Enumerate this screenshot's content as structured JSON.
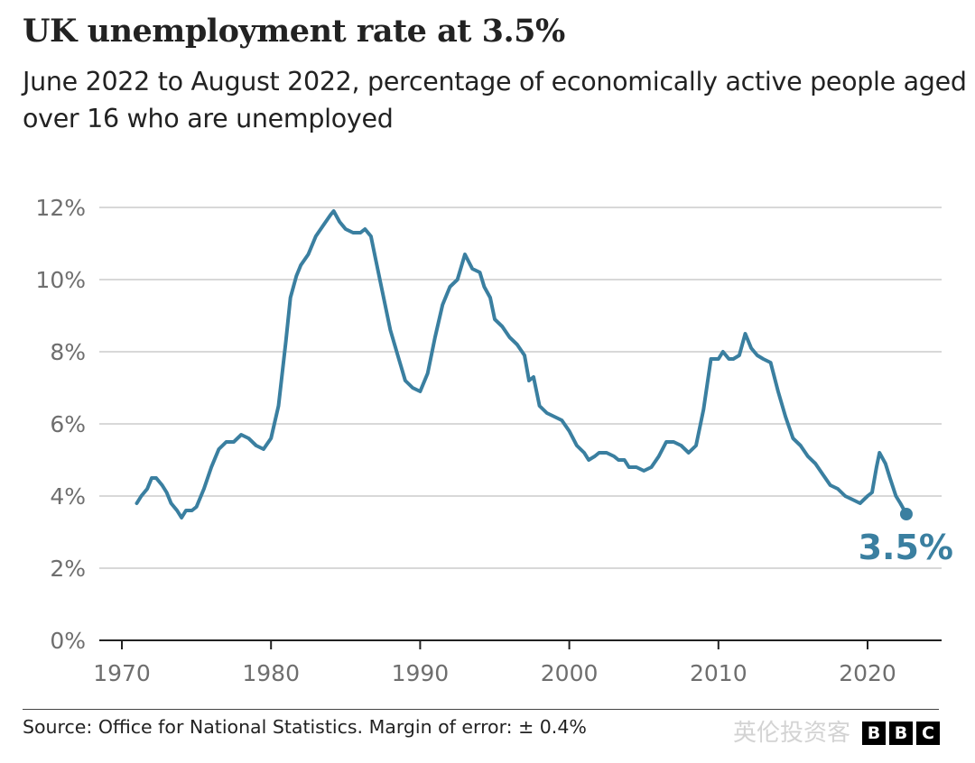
{
  "title": "UK unemployment rate at 3.5%",
  "subtitle": "June 2022 to August 2022, percentage of economically active people aged over 16 who are unemployed",
  "source": "Source: Office for National Statistics. Margin of error: ± 0.4%",
  "logo": [
    "B",
    "B",
    "C"
  ],
  "watermark": "英伦投资客",
  "colors": {
    "line": "#3a7fa0",
    "grid": "#cccccc",
    "axis": "#222222"
  },
  "chart_data": {
    "type": "line",
    "title": "UK unemployment rate at 3.5%",
    "xlabel": "",
    "ylabel": "",
    "ylim": [
      0,
      12
    ],
    "xlim": [
      1968,
      2025
    ],
    "yticks": [
      0,
      2,
      4,
      6,
      8,
      10,
      12
    ],
    "ytick_labels": [
      "0%",
      "2%",
      "4%",
      "6%",
      "8%",
      "10%",
      "12%"
    ],
    "xticks": [
      1970,
      1980,
      1990,
      2000,
      2010,
      2020
    ],
    "xtick_labels": [
      "1970",
      "1980",
      "1990",
      "2000",
      "2010",
      "2020"
    ],
    "grid": true,
    "annotation": {
      "label": "3.5%",
      "x": 2022.6,
      "y": 3.5
    },
    "series": [
      {
        "name": "Unemployment rate",
        "points": [
          [
            1971.0,
            3.8
          ],
          [
            1971.3,
            4.0
          ],
          [
            1971.7,
            4.2
          ],
          [
            1972.0,
            4.5
          ],
          [
            1972.3,
            4.5
          ],
          [
            1972.7,
            4.3
          ],
          [
            1973.0,
            4.1
          ],
          [
            1973.3,
            3.8
          ],
          [
            1973.7,
            3.6
          ],
          [
            1974.0,
            3.4
          ],
          [
            1974.3,
            3.6
          ],
          [
            1974.7,
            3.6
          ],
          [
            1975.0,
            3.7
          ],
          [
            1975.5,
            4.2
          ],
          [
            1976.0,
            4.8
          ],
          [
            1976.5,
            5.3
          ],
          [
            1977.0,
            5.5
          ],
          [
            1977.5,
            5.5
          ],
          [
            1978.0,
            5.7
          ],
          [
            1978.5,
            5.6
          ],
          [
            1979.0,
            5.4
          ],
          [
            1979.5,
            5.3
          ],
          [
            1980.0,
            5.6
          ],
          [
            1980.5,
            6.5
          ],
          [
            1981.0,
            8.3
          ],
          [
            1981.3,
            9.5
          ],
          [
            1981.7,
            10.1
          ],
          [
            1982.0,
            10.4
          ],
          [
            1982.5,
            10.7
          ],
          [
            1983.0,
            11.2
          ],
          [
            1983.5,
            11.5
          ],
          [
            1984.0,
            11.8
          ],
          [
            1984.2,
            11.9
          ],
          [
            1984.6,
            11.6
          ],
          [
            1985.0,
            11.4
          ],
          [
            1985.5,
            11.3
          ],
          [
            1986.0,
            11.3
          ],
          [
            1986.3,
            11.4
          ],
          [
            1986.7,
            11.2
          ],
          [
            1987.0,
            10.6
          ],
          [
            1987.5,
            9.6
          ],
          [
            1988.0,
            8.6
          ],
          [
            1988.5,
            7.9
          ],
          [
            1989.0,
            7.2
          ],
          [
            1989.5,
            7.0
          ],
          [
            1990.0,
            6.9
          ],
          [
            1990.5,
            7.4
          ],
          [
            1991.0,
            8.4
          ],
          [
            1991.5,
            9.3
          ],
          [
            1992.0,
            9.8
          ],
          [
            1992.5,
            10.0
          ],
          [
            1993.0,
            10.7
          ],
          [
            1993.5,
            10.3
          ],
          [
            1994.0,
            10.2
          ],
          [
            1994.3,
            9.8
          ],
          [
            1994.7,
            9.5
          ],
          [
            1995.0,
            8.9
          ],
          [
            1995.5,
            8.7
          ],
          [
            1996.0,
            8.4
          ],
          [
            1996.5,
            8.2
          ],
          [
            1997.0,
            7.9
          ],
          [
            1997.3,
            7.2
          ],
          [
            1997.6,
            7.3
          ],
          [
            1998.0,
            6.5
          ],
          [
            1998.5,
            6.3
          ],
          [
            1999.0,
            6.2
          ],
          [
            1999.5,
            6.1
          ],
          [
            2000.0,
            5.8
          ],
          [
            2000.5,
            5.4
          ],
          [
            2001.0,
            5.2
          ],
          [
            2001.3,
            5.0
          ],
          [
            2001.7,
            5.1
          ],
          [
            2002.0,
            5.2
          ],
          [
            2002.5,
            5.2
          ],
          [
            2003.0,
            5.1
          ],
          [
            2003.3,
            5.0
          ],
          [
            2003.7,
            5.0
          ],
          [
            2004.0,
            4.8
          ],
          [
            2004.5,
            4.8
          ],
          [
            2005.0,
            4.7
          ],
          [
            2005.5,
            4.8
          ],
          [
            2006.0,
            5.1
          ],
          [
            2006.5,
            5.5
          ],
          [
            2007.0,
            5.5
          ],
          [
            2007.5,
            5.4
          ],
          [
            2008.0,
            5.2
          ],
          [
            2008.5,
            5.4
          ],
          [
            2009.0,
            6.4
          ],
          [
            2009.5,
            7.8
          ],
          [
            2010.0,
            7.8
          ],
          [
            2010.3,
            8.0
          ],
          [
            2010.7,
            7.8
          ],
          [
            2011.0,
            7.8
          ],
          [
            2011.4,
            7.9
          ],
          [
            2011.8,
            8.5
          ],
          [
            2012.2,
            8.1
          ],
          [
            2012.6,
            7.9
          ],
          [
            2013.0,
            7.8
          ],
          [
            2013.5,
            7.7
          ],
          [
            2014.0,
            6.9
          ],
          [
            2014.5,
            6.2
          ],
          [
            2015.0,
            5.6
          ],
          [
            2015.5,
            5.4
          ],
          [
            2016.0,
            5.1
          ],
          [
            2016.5,
            4.9
          ],
          [
            2017.0,
            4.6
          ],
          [
            2017.5,
            4.3
          ],
          [
            2018.0,
            4.2
          ],
          [
            2018.5,
            4.0
          ],
          [
            2019.0,
            3.9
          ],
          [
            2019.5,
            3.8
          ],
          [
            2020.0,
            4.0
          ],
          [
            2020.3,
            4.1
          ],
          [
            2020.6,
            4.8
          ],
          [
            2020.8,
            5.2
          ],
          [
            2021.2,
            4.9
          ],
          [
            2021.5,
            4.5
          ],
          [
            2021.9,
            4.0
          ],
          [
            2022.2,
            3.8
          ],
          [
            2022.6,
            3.5
          ]
        ]
      }
    ]
  }
}
